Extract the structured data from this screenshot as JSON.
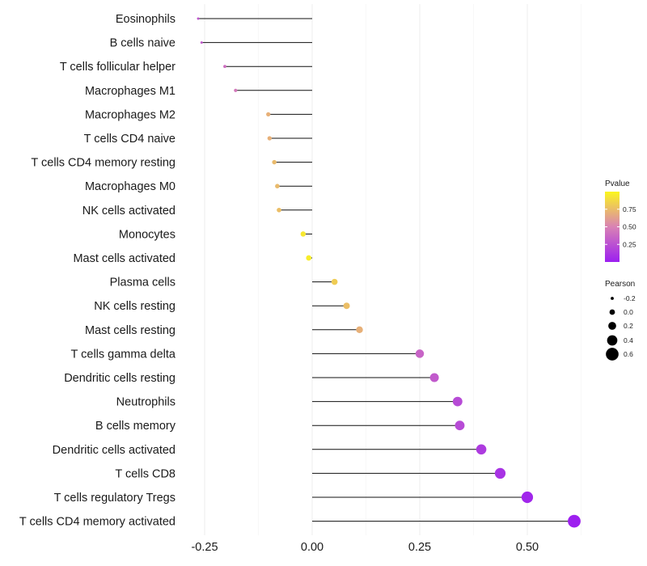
{
  "chart_data": {
    "type": "lollipop",
    "title": "",
    "xlabel": "",
    "ylabel": "",
    "xlim": [
      -0.3,
      0.63
    ],
    "xticks": [
      -0.25,
      0.0,
      0.25,
      0.5
    ],
    "xtick_labels": [
      "-0.25",
      "0.00",
      "0.25",
      "0.50"
    ],
    "grid": true,
    "categories": [
      "Eosinophils",
      "B cells naive",
      "T cells follicular helper",
      "Macrophages M1",
      "Macrophages M2",
      "T cells CD4 naive",
      "T cells CD4 memory resting",
      "Macrophages M0",
      "NK cells activated",
      "Monocytes",
      "Mast cells activated",
      "Plasma cells",
      "NK cells resting",
      "Mast cells resting",
      "T cells gamma delta",
      "Dendritic cells resting",
      "Neutrophils",
      "B cells memory",
      "Dendritic cells activated",
      "T cells CD8",
      "T cells regulatory  Tregs ",
      "T cells CD4 memory activated"
    ],
    "pearson": [
      -0.265,
      -0.257,
      -0.203,
      -0.178,
      -0.102,
      -0.099,
      -0.088,
      -0.081,
      -0.077,
      -0.021,
      -0.008,
      0.052,
      0.08,
      0.11,
      0.25,
      0.284,
      0.338,
      0.343,
      0.393,
      0.437,
      0.5,
      0.609
    ],
    "pvalue": [
      0.28,
      0.3,
      0.4,
      0.45,
      0.7,
      0.7,
      0.74,
      0.74,
      0.76,
      0.94,
      0.96,
      0.82,
      0.76,
      0.7,
      0.35,
      0.3,
      0.22,
      0.22,
      0.14,
      0.1,
      0.04,
      0.005
    ],
    "legend": {
      "color_title": "Pvalue",
      "color_range": [
        0.0,
        1.0
      ],
      "color_ticks": [
        0.25,
        0.5,
        0.75
      ],
      "color_tick_labels": [
        "0.25",
        "0.50",
        "0.75"
      ],
      "color_low": "#9c1ff0",
      "color_mid": "#d982b4",
      "color_high": "#fbf61e",
      "size_title": "Pearson",
      "size_values": [
        -0.2,
        0.0,
        0.2,
        0.4,
        0.6
      ],
      "size_labels": [
        "-0.2",
        "0.0",
        "0.2",
        "0.4",
        "0.6"
      ]
    }
  }
}
